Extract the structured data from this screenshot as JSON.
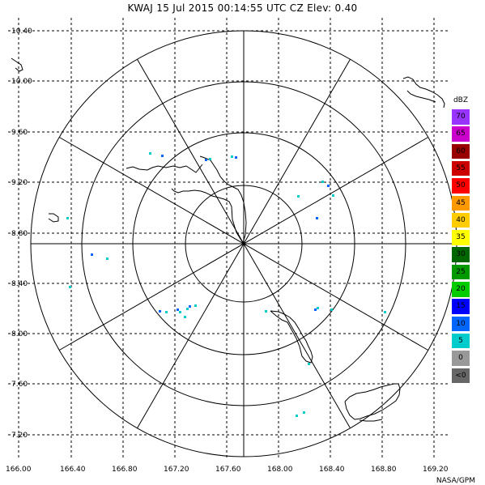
{
  "title": "KWAJ  15 Jul 2015 00:14:55 UTC  CZ  Elev: 0.40",
  "credit": "NASA/GPM",
  "map": {
    "lat_labels": [
      "10.40",
      "10.00",
      "9.60",
      "9.20",
      "8.80",
      "8.40",
      "8.00",
      "7.60",
      "7.20"
    ],
    "lon_labels": [
      "166.00",
      "166.40",
      "166.80",
      "167.20",
      "167.60",
      "168.00",
      "168.40",
      "168.80",
      "169.20"
    ],
    "grid_color": "#000000"
  },
  "legend": {
    "unit": "dBZ",
    "items": [
      {
        "label": "70",
        "color": "#9933ff",
        "text": "#000000"
      },
      {
        "label": "65",
        "color": "#cc00cc",
        "text": "#000000"
      },
      {
        "label": "60",
        "color": "#990000",
        "text": "#000000"
      },
      {
        "label": "55",
        "color": "#cc0000",
        "text": "#000000"
      },
      {
        "label": "50",
        "color": "#ff0000",
        "text": "#000000"
      },
      {
        "label": "45",
        "color": "#ff9900",
        "text": "#000000"
      },
      {
        "label": "40",
        "color": "#ffcc00",
        "text": "#000000"
      },
      {
        "label": "35",
        "color": "#ffff00",
        "text": "#000000"
      },
      {
        "label": "30",
        "color": "#006600",
        "text": "#000000"
      },
      {
        "label": "25",
        "color": "#009900",
        "text": "#000000"
      },
      {
        "label": "20",
        "color": "#00cc00",
        "text": "#000000"
      },
      {
        "label": "15",
        "color": "#0000ff",
        "text": "#000000"
      },
      {
        "label": "10",
        "color": "#0066ff",
        "text": "#000000"
      },
      {
        "label": "5",
        "color": "#00cccc",
        "text": "#000000"
      },
      {
        "label": "0",
        "color": "#999999",
        "text": "#000000"
      },
      {
        "label": "<0",
        "color": "#666666",
        "text": "#000000"
      }
    ]
  }
}
